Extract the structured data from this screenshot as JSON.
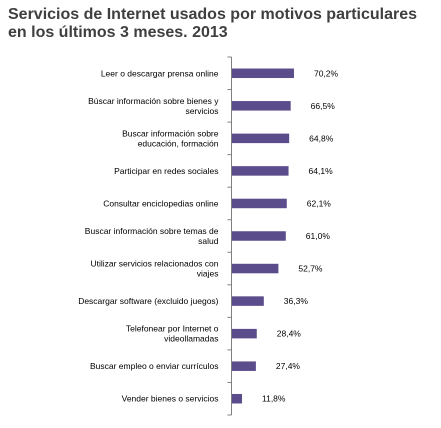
{
  "chart_data": {
    "type": "bar",
    "orientation": "horizontal",
    "title": "Servicios de Internet usados por motivos particulares en los últimos 3 meses. 2013",
    "categories": [
      "Leer o descargar prensa online",
      "Búscar información sobre bienes y servicios",
      "Buscar información sobre educación, formación",
      "Participar en redes sociales",
      "Consultar enciclopedias online",
      "Buscar información sobre temas de salud",
      "Utilizar servicios relacionados con viajes",
      "Descargar software (excluido juegos)",
      "Telefonear por Internet o videollamadas",
      "Buscar empleo o enviar currículos",
      "Vender bienes o servicios"
    ],
    "category_lines": [
      [
        "Leer o descargar prensa online"
      ],
      [
        "Búscar información sobre bienes y",
        "servicios"
      ],
      [
        "Buscar información sobre",
        "educación, formación"
      ],
      [
        "Participar en redes sociales"
      ],
      [
        "Consultar enciclopedias online"
      ],
      [
        "Buscar información sobre temas de",
        "salud"
      ],
      [
        "Utilizar servicios relacionados con",
        "viajes"
      ],
      [
        "Descargar software (excluido juegos)"
      ],
      [
        "Telefonear por Internet o",
        "videollamadas"
      ],
      [
        "Buscar empleo o enviar currículos"
      ],
      [
        "Vender bienes o servicios"
      ]
    ],
    "values": [
      70.2,
      66.5,
      64.8,
      64.1,
      62.1,
      61.0,
      52.7,
      36.3,
      28.4,
      27.4,
      11.8
    ],
    "value_labels": [
      "70,2%",
      "66,5%",
      "64,8%",
      "64,1%",
      "62,1%",
      "61,0%",
      "52,7%",
      "36,3%",
      "28,4%",
      "27,4%",
      "11,8%"
    ],
    "unit": "%",
    "xlim": [
      0,
      100
    ],
    "grid": false,
    "legend": "none",
    "bar_color": "#5b4c8b"
  }
}
